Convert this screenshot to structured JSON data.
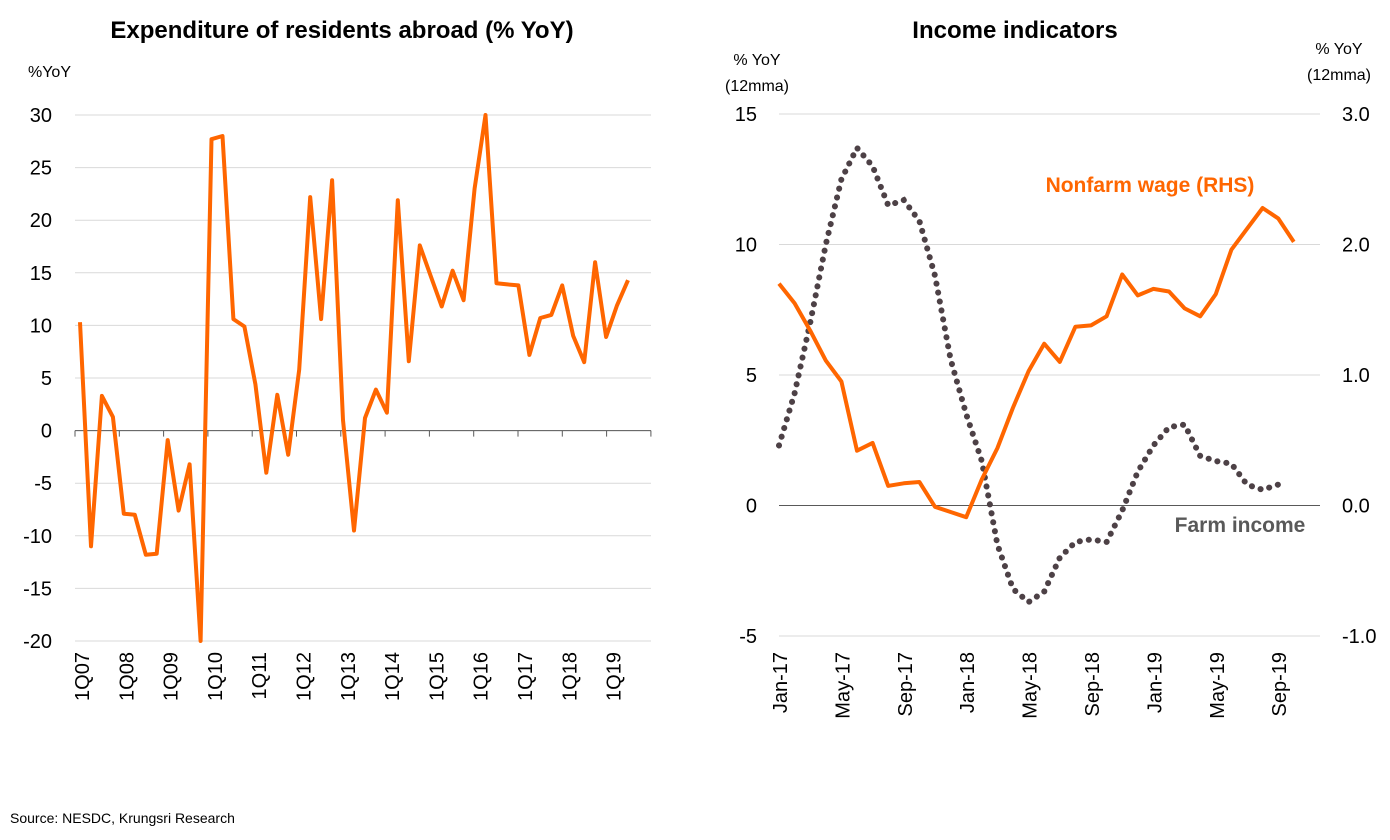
{
  "chart_data": [
    {
      "type": "line",
      "title": "Expenditure of residents abroad (% YoY)",
      "ylabel": "%YoY",
      "ylim": [
        -20,
        30
      ],
      "yticks": [
        30,
        25,
        20,
        15,
        10,
        5,
        0,
        -5,
        -10,
        -15,
        -20
      ],
      "xtick_labels": [
        "1Q07",
        "1Q08",
        "1Q09",
        "1Q10",
        "1Q11",
        "1Q12",
        "1Q13",
        "1Q14",
        "1Q15",
        "1Q16",
        "1Q17",
        "1Q18",
        "1Q19"
      ],
      "series": [
        {
          "name": "Expenditure of residents abroad",
          "color": "#ff6600",
          "values": [
            10.3,
            -11.0,
            3.3,
            1.3,
            -7.9,
            -8.0,
            -11.8,
            -11.7,
            -0.9,
            -7.6,
            -3.2,
            -20.0,
            27.7,
            28.0,
            10.6,
            9.9,
            4.4,
            -4.0,
            3.4,
            -2.3,
            5.8,
            22.2,
            10.6,
            23.8,
            1.0,
            -9.5,
            1.2,
            3.9,
            1.7,
            21.9,
            6.6,
            17.6,
            14.7,
            11.8,
            15.2,
            12.4,
            23.0,
            30.0,
            14.0,
            13.9,
            13.8,
            7.2,
            10.7,
            11.0,
            13.8,
            9.0,
            6.5,
            16.0,
            8.9,
            11.9,
            14.3
          ]
        }
      ]
    },
    {
      "type": "line",
      "title": "Income indicators",
      "ylabel_left": [
        "% YoY",
        "(12mma)"
      ],
      "ylabel_right": [
        "% YoY",
        "(12mma)"
      ],
      "ylim_left": [
        -5,
        15
      ],
      "ylim_right": [
        -1.0,
        3.0
      ],
      "yticks_left": [
        "15",
        "10",
        "5",
        "0",
        "-5"
      ],
      "yticks_right": [
        "3.0",
        "2.0",
        "1.0",
        "0.0",
        "-1.0"
      ],
      "x_months": [
        "Jan-17",
        "Feb-17",
        "Mar-17",
        "Apr-17",
        "May-17",
        "Jun-17",
        "Jul-17",
        "Aug-17",
        "Sep-17",
        "Oct-17",
        "Nov-17",
        "Dec-17",
        "Jan-18",
        "Feb-18",
        "Mar-18",
        "Apr-18",
        "May-18",
        "Jun-18",
        "Jul-18",
        "Aug-18",
        "Sep-18",
        "Oct-18",
        "Nov-18",
        "Dec-18",
        "Jan-19",
        "Feb-19",
        "Mar-19",
        "Apr-19",
        "May-19",
        "Jun-19",
        "Jul-19",
        "Aug-19",
        "Sep-19",
        "Oct-19"
      ],
      "xtick_labels": [
        "Jan-17",
        "May-17",
        "Sep-17",
        "Jan-18",
        "May-18",
        "Sep-18",
        "Jan-19",
        "May-19",
        "Sep-19"
      ],
      "series": [
        {
          "name": "Nonfarm wage (RHS)",
          "axis": "right",
          "style": "solid",
          "color": "#ff6600",
          "label_color": "#ff6600",
          "values": [
            1.7,
            1.55,
            1.34,
            1.11,
            0.95,
            0.42,
            0.48,
            0.15,
            0.17,
            0.18,
            -0.01,
            -0.05,
            -0.09,
            0.2,
            0.44,
            0.75,
            1.03,
            1.24,
            1.1,
            1.37,
            1.38,
            1.45,
            1.77,
            1.61,
            1.66,
            1.64,
            1.51,
            1.45,
            1.62,
            1.96,
            2.12,
            2.28,
            2.2,
            2.02
          ]
        },
        {
          "name": "Farm income",
          "axis": "left",
          "style": "dotted",
          "color": "#4d4146",
          "label_color": "#595959",
          "values": [
            2.3,
            4.3,
            7.0,
            10.0,
            12.5,
            13.7,
            13.0,
            11.5,
            11.7,
            10.9,
            8.8,
            5.6,
            3.5,
            1.7,
            -1.5,
            -3.2,
            -3.7,
            -3.3,
            -2.0,
            -1.4,
            -1.3,
            -1.4,
            -0.2,
            1.3,
            2.3,
            3.0,
            3.1,
            1.9,
            1.7,
            1.6,
            0.8,
            0.6,
            0.8
          ]
        }
      ]
    }
  ],
  "source": "Source: NESDC, Krungsri Research"
}
